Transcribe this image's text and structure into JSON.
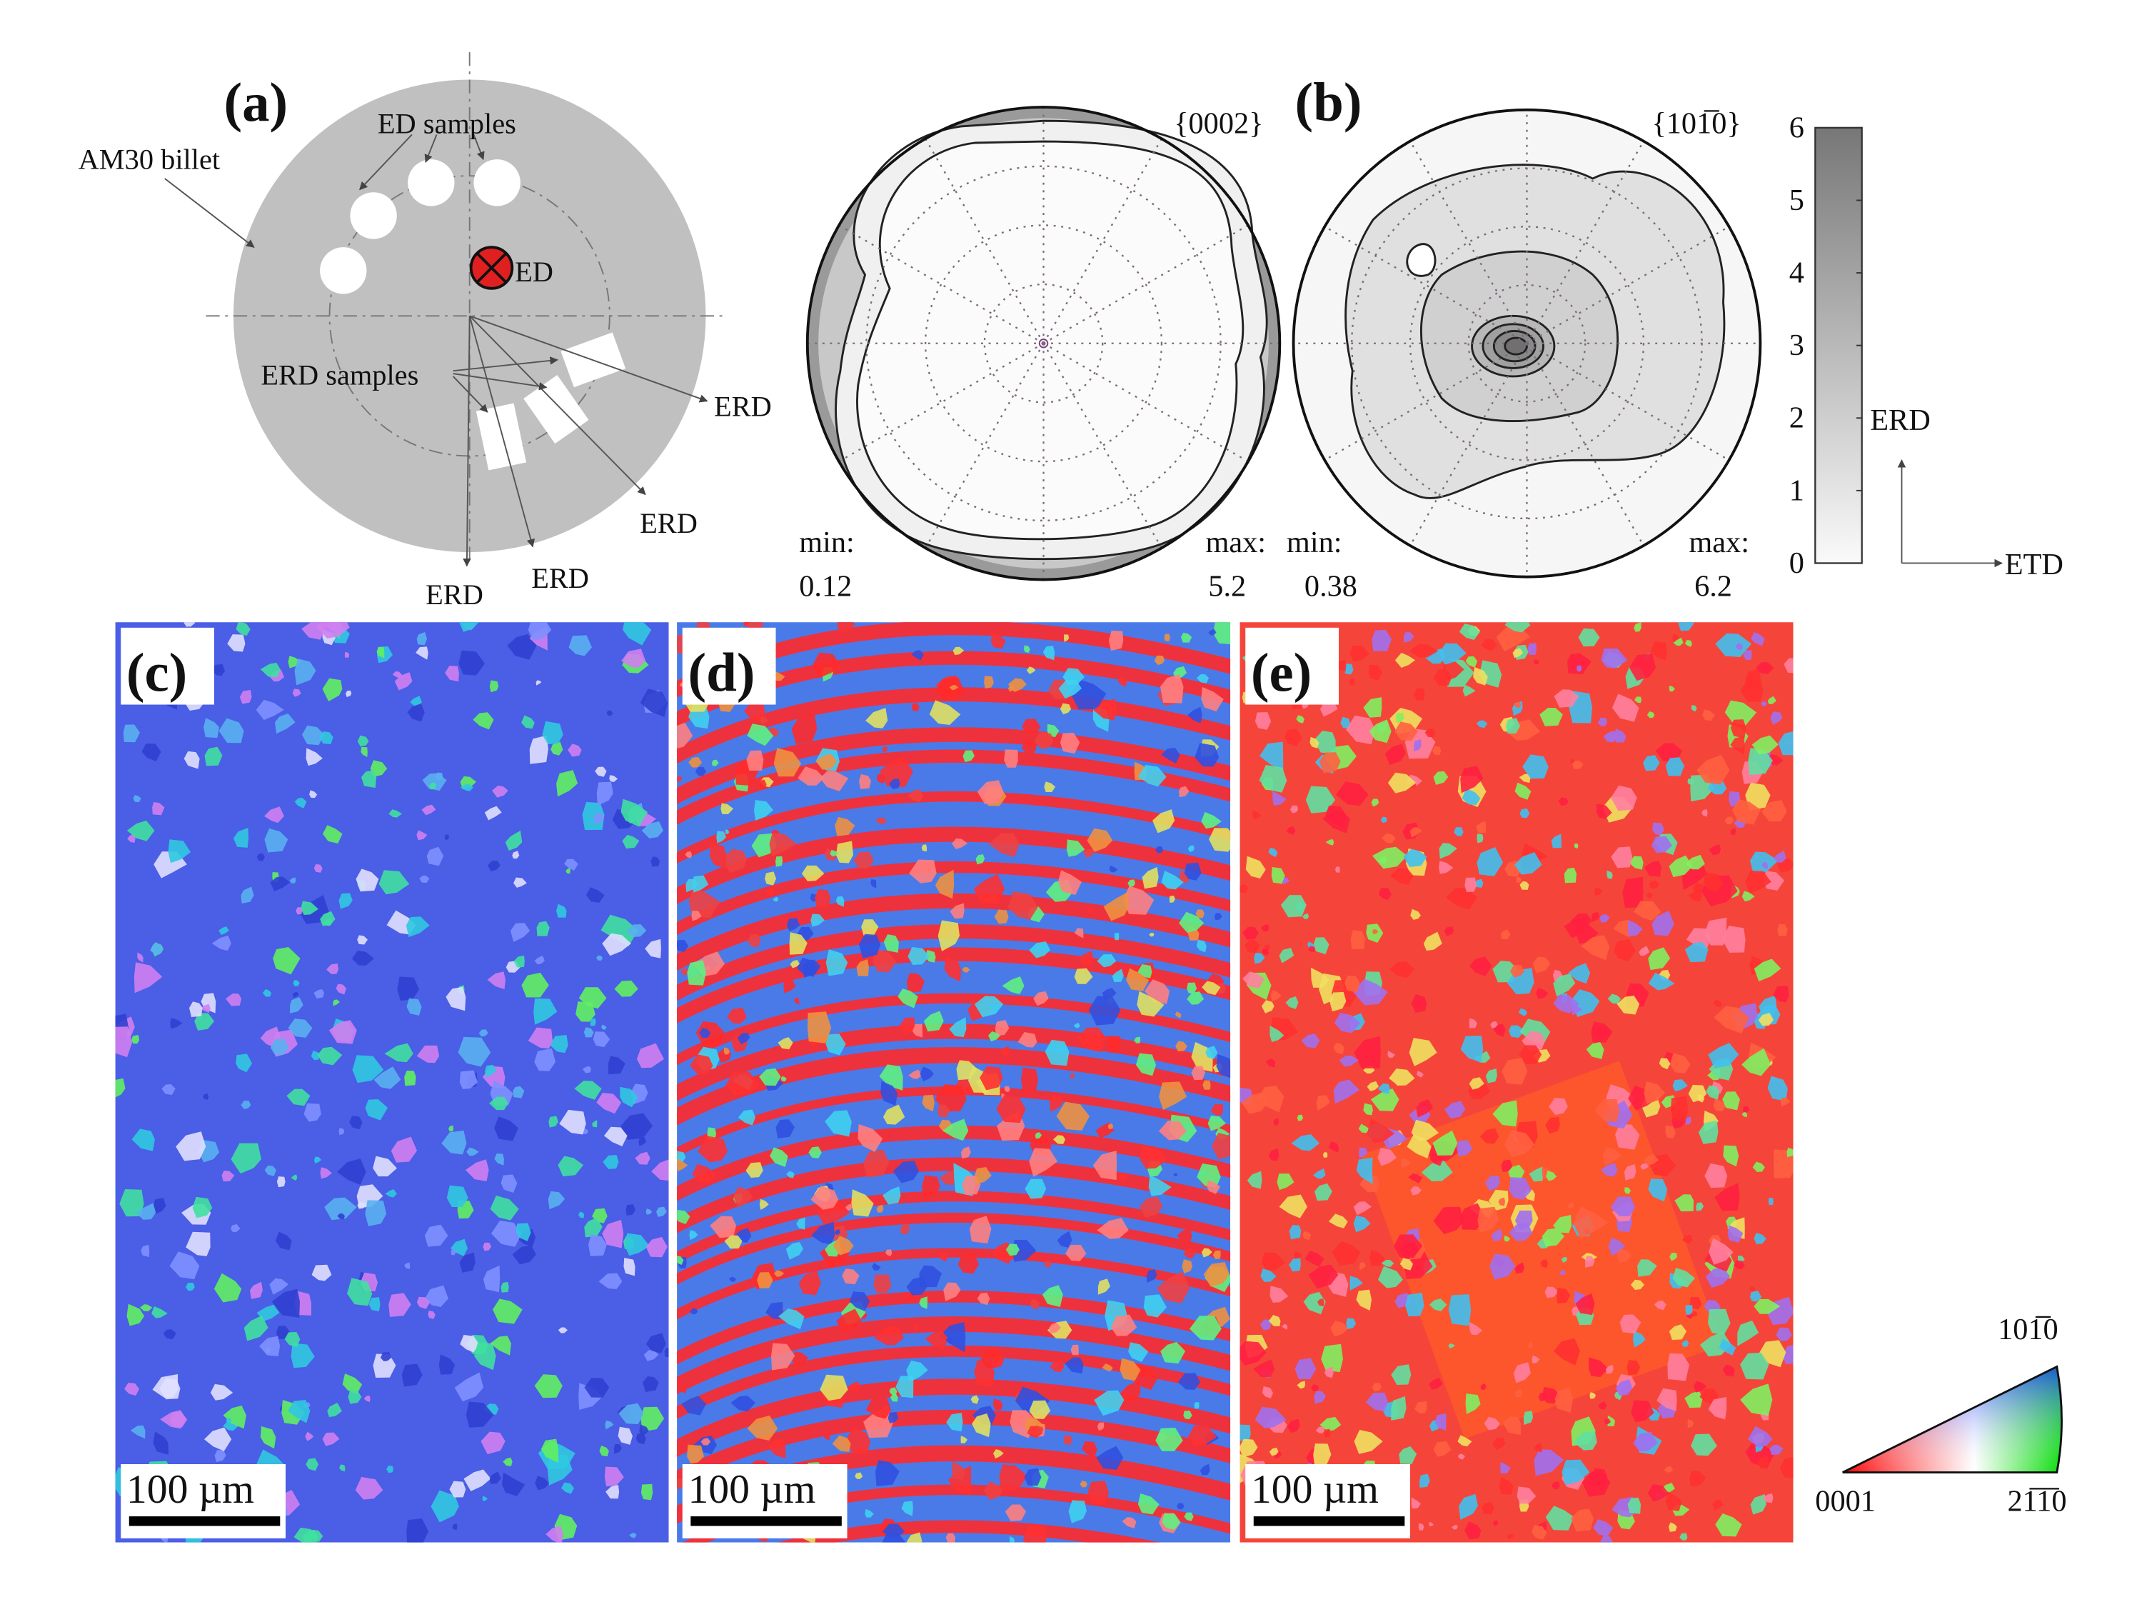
{
  "panel_a": {
    "label": "(a)",
    "billet": "AM30 billet",
    "ed_samples": "ED samples",
    "ed": "ED",
    "erd_samples": "ERD samples",
    "erd_directions": [
      "ERD",
      "ERD",
      "ERD",
      "ERD"
    ]
  },
  "panel_b": {
    "label": "(b)",
    "pole_figures": [
      {
        "plane": "{0002}",
        "min_label": "min:",
        "min": 0.12,
        "max_label": "max:",
        "max": 5.2
      },
      {
        "plane": "{101̅0}",
        "min_label": "min:",
        "min": 0.38,
        "max_label": "max:",
        "max": 6.2
      }
    ],
    "colorbar": {
      "range": [
        0,
        6
      ],
      "ticks": [
        0,
        1,
        2,
        3,
        4,
        5,
        6
      ]
    },
    "axes": {
      "vertical": "ERD",
      "horizontal": "ETD"
    }
  },
  "maps": [
    {
      "label": "(c)",
      "scale_bar": "100 µm"
    },
    {
      "label": "(d)",
      "scale_bar": "100 µm"
    },
    {
      "label": "(e)",
      "scale_bar": "100 µm"
    }
  ],
  "ipf_key": {
    "top": "101̅0",
    "left": "0001",
    "right": "21̅1̅0"
  }
}
